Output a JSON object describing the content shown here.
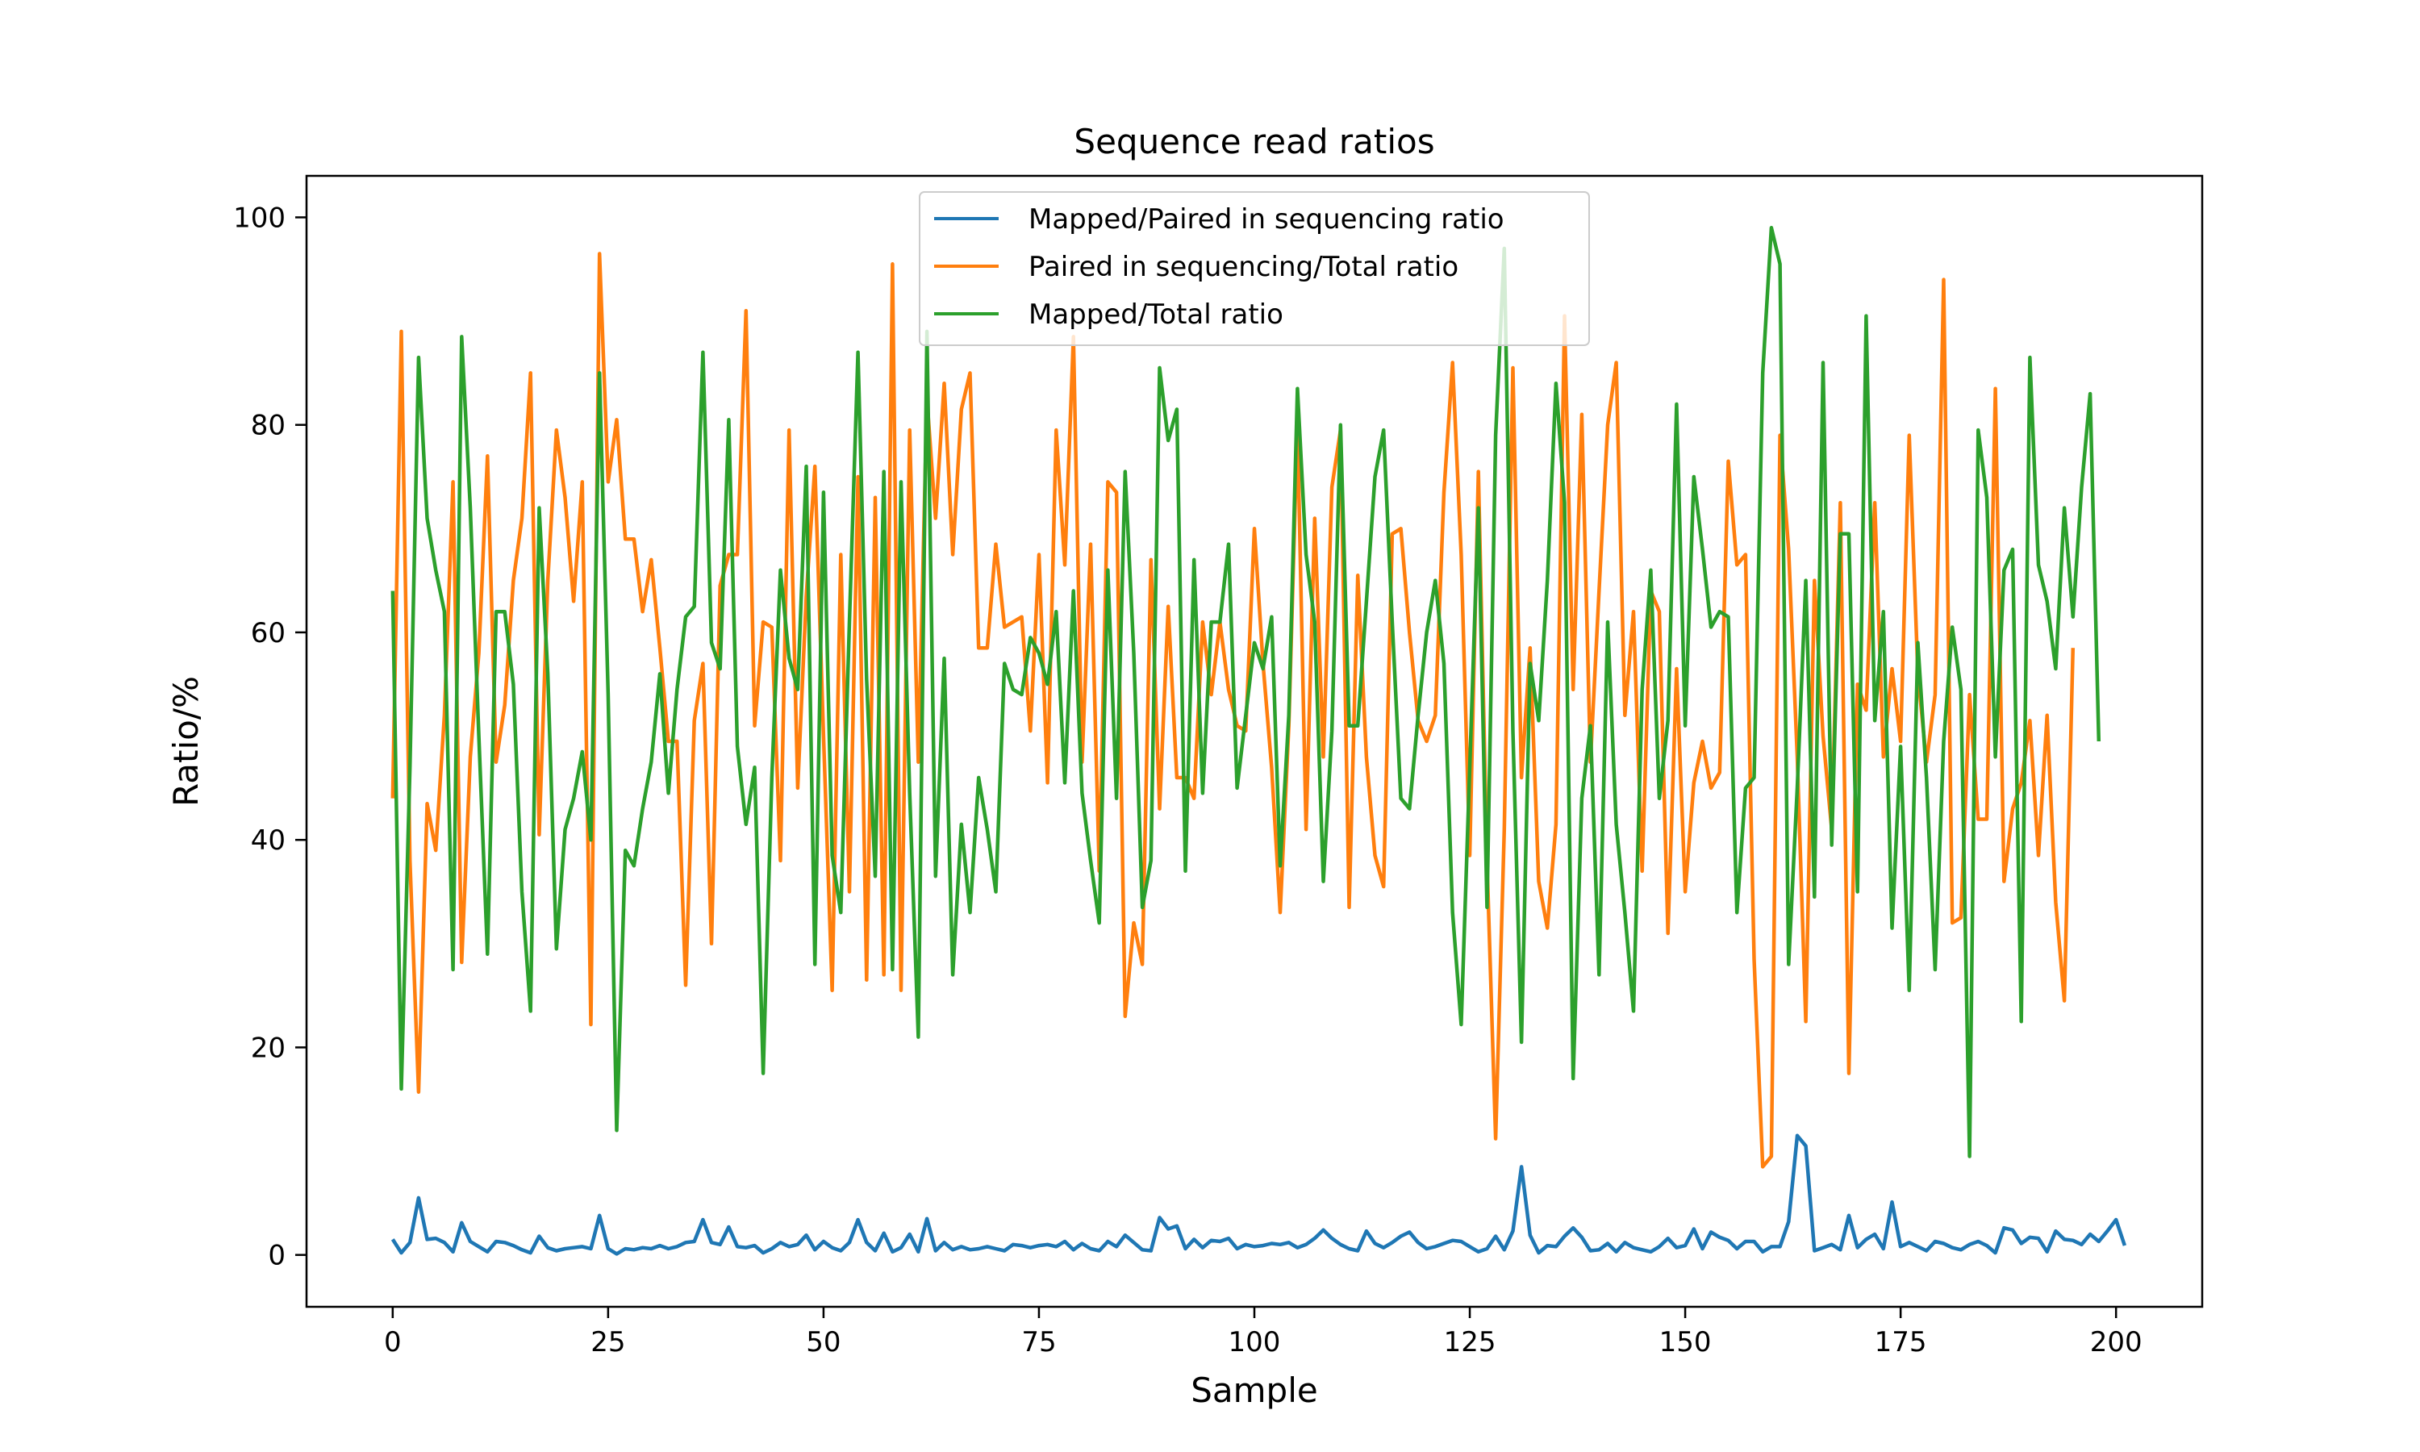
{
  "chart_data": {
    "type": "line",
    "title": "Sequence read ratios",
    "xlabel": "Sample",
    "ylabel": "Ratio/%",
    "xlim": [
      -10,
      210
    ],
    "ylim": [
      -5,
      104
    ],
    "xticks": [
      0,
      25,
      50,
      75,
      100,
      125,
      150,
      175,
      200
    ],
    "yticks": [
      0,
      20,
      40,
      60,
      80,
      100
    ],
    "grid": false,
    "legend": "top-center",
    "x_start": 0,
    "x_step": 1,
    "series": [
      {
        "name": "Mapped/Paired in sequencing ratio",
        "color": "#1f77b4",
        "values": [
          1.5,
          0.2,
          1.2,
          5.5,
          1.5,
          1.6,
          1.2,
          0.3,
          3.1,
          1.3,
          0.8,
          0.3,
          1.3,
          1.2,
          0.9,
          0.5,
          0.2,
          1.8,
          0.7,
          0.4,
          0.6,
          0.7,
          0.8,
          0.6,
          3.8,
          0.6,
          0.1,
          0.6,
          0.5,
          0.7,
          0.6,
          0.9,
          0.6,
          0.8,
          1.2,
          1.3,
          3.4,
          1.2,
          1.0,
          2.7,
          0.8,
          0.7,
          0.9,
          0.2,
          0.6,
          1.2,
          0.8,
          1.0,
          1.9,
          0.5,
          1.3,
          0.7,
          0.4,
          1.2,
          3.4,
          1.2,
          0.4,
          2.1,
          0.3,
          0.7,
          2.0,
          0.3,
          3.5,
          0.4,
          1.2,
          0.5,
          0.8,
          0.5,
          0.6,
          0.8,
          0.6,
          0.4,
          1.0,
          0.9,
          0.7,
          0.9,
          1.0,
          0.8,
          1.3,
          0.5,
          1.1,
          0.6,
          0.4,
          1.3,
          0.8,
          1.9,
          1.2,
          0.5,
          0.4,
          3.6,
          2.5,
          2.8,
          0.6,
          1.5,
          0.7,
          1.4,
          1.3,
          1.6,
          0.6,
          1.0,
          0.8,
          0.9,
          1.1,
          1.0,
          1.2,
          0.7,
          1.0,
          1.6,
          2.4,
          1.6,
          1.0,
          0.6,
          0.4,
          2.3,
          1.1,
          0.7,
          1.2,
          1.8,
          2.2,
          1.2,
          0.6,
          0.8,
          1.1,
          1.4,
          1.3,
          0.8,
          0.3,
          0.6,
          1.8,
          0.5,
          2.3,
          8.5,
          1.9,
          0.2,
          0.9,
          0.8,
          1.8,
          2.6,
          1.7,
          0.4,
          0.5,
          1.1,
          0.3,
          1.2,
          0.7,
          0.5,
          0.3,
          0.8,
          1.6,
          0.7,
          0.9,
          2.5,
          0.6,
          2.2,
          1.7,
          1.4,
          0.6,
          1.3,
          1.3,
          0.3,
          0.8,
          0.8,
          3.2,
          11.5,
          10.5,
          0.4,
          0.7,
          1.0,
          0.5,
          3.8,
          0.7,
          1.5,
          2.0,
          0.6,
          5.1,
          0.8,
          1.2,
          0.8,
          0.4,
          1.3,
          1.1,
          0.7,
          0.5,
          1.0,
          1.3,
          0.9,
          0.2,
          2.6,
          2.4,
          1.1,
          1.7,
          1.6,
          0.3,
          2.3,
          1.5,
          1.4,
          1.0,
          2.0,
          1.3,
          2.3,
          3.4,
          0.9
        ]
      },
      {
        "name": "Paired in sequencing/Total ratio",
        "color": "#ff7f0e",
        "values": [
          44,
          89,
          38,
          15.7,
          43.5,
          39,
          52,
          74.5,
          28.2,
          48,
          58,
          77,
          47.5,
          53,
          65,
          71,
          85,
          40.5,
          65,
          79.5,
          73,
          63,
          74.5,
          22.2,
          96.5,
          74.5,
          80.5,
          69,
          69,
          62,
          67,
          58.5,
          49.5,
          49.5,
          26,
          51.5,
          57,
          30,
          64.5,
          67.5,
          67.5,
          91,
          51,
          61,
          60.5,
          38,
          79.5,
          45,
          63.5,
          76,
          50,
          25.5,
          67.5,
          35,
          75,
          26.5,
          73,
          27,
          95.5,
          25.5,
          79.5,
          47.5,
          82.5,
          71,
          84,
          67.5,
          81.5,
          85,
          58.5,
          58.5,
          68.5,
          60.5,
          61,
          61.5,
          50.5,
          67.5,
          45.5,
          79.5,
          66.5,
          88.5,
          47.5,
          68.5,
          37,
          74.5,
          73.5,
          23,
          32,
          28,
          67,
          43,
          62.5,
          46,
          46,
          44,
          61,
          54,
          61,
          54.5,
          51,
          50.5,
          70,
          57,
          47,
          33,
          51,
          80,
          41,
          71,
          48,
          74,
          79.5,
          33.5,
          65.5,
          48,
          38.5,
          35.5,
          69.5,
          70,
          60,
          51.5,
          49.5,
          52,
          73.5,
          86,
          67.5,
          38.5,
          75.5,
          38,
          11.2,
          41,
          85.5,
          46,
          58.5,
          36,
          31.5,
          41.5,
          90.5,
          54.5,
          81,
          47.5,
          64,
          80,
          86,
          52,
          62,
          37,
          64,
          62,
          31,
          56.5,
          35,
          45.5,
          49.5,
          45,
          46.5,
          76.5,
          66.5,
          67.5,
          28.5,
          8.5,
          9.5,
          79,
          68,
          48,
          22.5,
          65,
          50,
          41,
          72.5,
          17.5,
          55,
          52.5,
          72.5,
          48,
          56.5,
          49.5,
          79,
          56,
          47.5,
          54,
          94,
          32,
          32.5,
          54,
          42,
          42,
          83.5,
          36,
          43,
          45.5,
          51.5,
          38.5,
          52,
          34,
          24.5,
          58.5
        ]
      },
      {
        "name": "Mapped/Total ratio",
        "color": "#2ca02c",
        "values": [
          64,
          16,
          47,
          86.5,
          71,
          66,
          62,
          27.5,
          88.5,
          72,
          50,
          29,
          62,
          62,
          55,
          35,
          23.5,
          72,
          56,
          29.5,
          41,
          44,
          48.5,
          40,
          85,
          54,
          12,
          39,
          37.5,
          43,
          47.5,
          56,
          44.5,
          54.5,
          61.5,
          62.5,
          87,
          59,
          56.5,
          80.5,
          49,
          41.5,
          47,
          17.5,
          46,
          66,
          57.5,
          54.5,
          76,
          28,
          73.5,
          38.5,
          33,
          61,
          87,
          55.5,
          36.5,
          75.5,
          27.5,
          74.5,
          44.5,
          21,
          89,
          36.5,
          57.5,
          27,
          41.5,
          33,
          46,
          41,
          35,
          57,
          54.5,
          54,
          59.5,
          58,
          55,
          62,
          45.5,
          64,
          44.5,
          38,
          32,
          66,
          44,
          75.5,
          58,
          33.5,
          38,
          85.5,
          78.5,
          81.5,
          37,
          67,
          44.5,
          61,
          61,
          68.5,
          45,
          52,
          59,
          56.5,
          61.5,
          37.5,
          52,
          83.5,
          67.5,
          61,
          36,
          50.5,
          80,
          51,
          51,
          63,
          75,
          79.5,
          61,
          44,
          43,
          52,
          60,
          65,
          57,
          33,
          22.2,
          47,
          72,
          33.5,
          79,
          97,
          50.5,
          20.5,
          57,
          51.5,
          65,
          84,
          72.5,
          17,
          44,
          51,
          27,
          61,
          41.5,
          33,
          23.5,
          54.5,
          66,
          44,
          51.5,
          82,
          51,
          75,
          68,
          60.5,
          62,
          61.5,
          33,
          45,
          46,
          85,
          99,
          95.5,
          28,
          45,
          65,
          34.5,
          86,
          39.5,
          69.5,
          69.5,
          35,
          90.5,
          51.5,
          62,
          31.5,
          49,
          25.5,
          59,
          46,
          27.5,
          49.5,
          60.5,
          54.5,
          9.5,
          79.5,
          73,
          48,
          66,
          68,
          22.5,
          86.5,
          66.5,
          63,
          56.5,
          72,
          61.5,
          74,
          83,
          49.5
        ]
      }
    ]
  }
}
